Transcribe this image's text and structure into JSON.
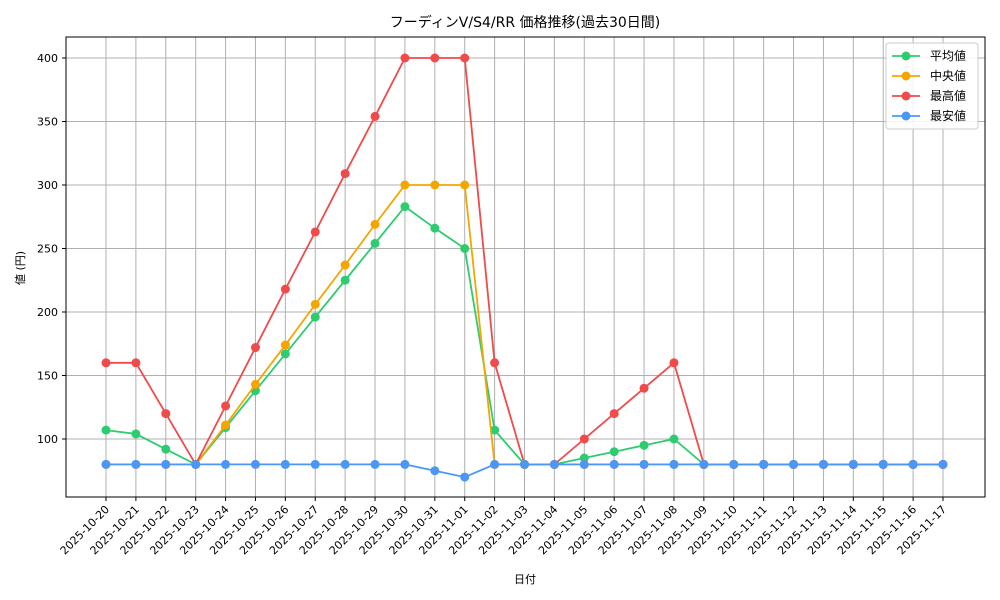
{
  "chart_data": {
    "type": "line",
    "title": "フーディンV/S4/RR 価格推移(過去30日間)",
    "xlabel": "日付",
    "ylabel": "値 (円)",
    "ylim": [
      60,
      415
    ],
    "yticks": [
      100,
      150,
      200,
      250,
      300,
      350,
      400
    ],
    "grid": true,
    "legend_position": "upper right",
    "x": [
      "2025-10-20",
      "2025-10-21",
      "2025-10-22",
      "2025-10-23",
      "2025-10-24",
      "2025-10-25",
      "2025-10-26",
      "2025-10-27",
      "2025-10-28",
      "2025-10-29",
      "2025-10-30",
      "2025-10-31",
      "2025-11-01",
      "2025-11-02",
      "2025-11-03",
      "2025-11-04",
      "2025-11-05",
      "2025-11-06",
      "2025-11-07",
      "2025-11-08",
      "2025-11-09",
      "2025-11-10",
      "2025-11-11",
      "2025-11-12",
      "2025-11-13",
      "2025-11-14",
      "2025-11-15",
      "2025-11-16",
      "2025-11-17"
    ],
    "series": [
      {
        "name": "平均値",
        "color": "#2ecc71",
        "values": [
          107,
          104,
          92,
          80,
          109,
          138,
          167,
          196,
          225,
          254,
          283,
          266,
          250,
          107,
          80,
          80,
          85,
          90,
          95,
          100,
          80,
          80,
          80,
          80,
          80,
          80,
          80,
          80,
          80
        ]
      },
      {
        "name": "中央値",
        "color": "#f5a500",
        "values": [
          80,
          80,
          80,
          80,
          111,
          143,
          174,
          206,
          237,
          269,
          300,
          300,
          300,
          80,
          80,
          80,
          80,
          80,
          80,
          80,
          80,
          80,
          80,
          80,
          80,
          80,
          80,
          80,
          80
        ]
      },
      {
        "name": "最高値",
        "color": "#f04a4a",
        "values": [
          160,
          160,
          120,
          80,
          126,
          172,
          218,
          263,
          309,
          354,
          400,
          400,
          400,
          160,
          80,
          80,
          100,
          120,
          140,
          160,
          80,
          80,
          80,
          80,
          80,
          80,
          80,
          80,
          80
        ]
      },
      {
        "name": "最安値",
        "color": "#4c97f5",
        "values": [
          80,
          80,
          80,
          80,
          80,
          80,
          80,
          80,
          80,
          80,
          80,
          75,
          70,
          80,
          80,
          80,
          80,
          80,
          80,
          80,
          80,
          80,
          80,
          80,
          80,
          80,
          80,
          80,
          80
        ]
      }
    ]
  }
}
